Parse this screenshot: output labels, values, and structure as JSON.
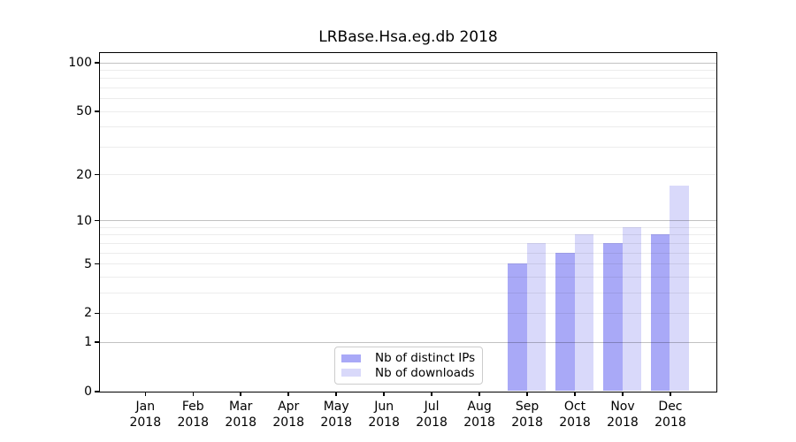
{
  "figure": {
    "title": "LRBase.Hsa.eg.db 2018",
    "background_color": "#ffffff"
  },
  "legend": {
    "items": [
      {
        "label": "Nb of distinct IPs",
        "color": "#a9a9f7"
      },
      {
        "label": "Nb of downloads",
        "color": "#d9d9fa"
      }
    ]
  },
  "chart_data": {
    "type": "bar",
    "title": "LRBase.Hsa.eg.db 2018",
    "categories": [
      "Jan 2018",
      "Feb 2018",
      "Mar 2018",
      "Apr 2018",
      "May 2018",
      "Jun 2018",
      "Jul 2018",
      "Aug 2018",
      "Sep 2018",
      "Oct 2018",
      "Nov 2018",
      "Dec 2018"
    ],
    "months": [
      "Jan",
      "Feb",
      "Mar",
      "Apr",
      "May",
      "Jun",
      "Jul",
      "Aug",
      "Sep",
      "Oct",
      "Nov",
      "Dec"
    ],
    "year": "2018",
    "series": [
      {
        "name": "Nb of distinct IPs",
        "color": "#a9a9f7",
        "values": [
          0,
          0,
          0,
          0,
          0,
          0,
          0,
          0,
          5,
          6,
          7,
          8
        ]
      },
      {
        "name": "Nb of downloads",
        "color": "#d9d9fa",
        "values": [
          0,
          0,
          0,
          0,
          0,
          0,
          0,
          0,
          7,
          8,
          9,
          17
        ]
      }
    ],
    "xlabel": "",
    "ylabel": "",
    "y_scale": "log1p",
    "ylim": [
      0,
      115
    ],
    "y_ticks": [
      0,
      1,
      2,
      5,
      10,
      20,
      50,
      100
    ],
    "y_gridlines_major": [
      1,
      10,
      100
    ],
    "y_gridlines_minor": [
      2,
      3,
      4,
      5,
      6,
      7,
      8,
      9,
      20,
      30,
      40,
      50,
      60,
      70,
      80,
      90
    ],
    "grid": true,
    "legend_position": "bottom-center-inside"
  }
}
